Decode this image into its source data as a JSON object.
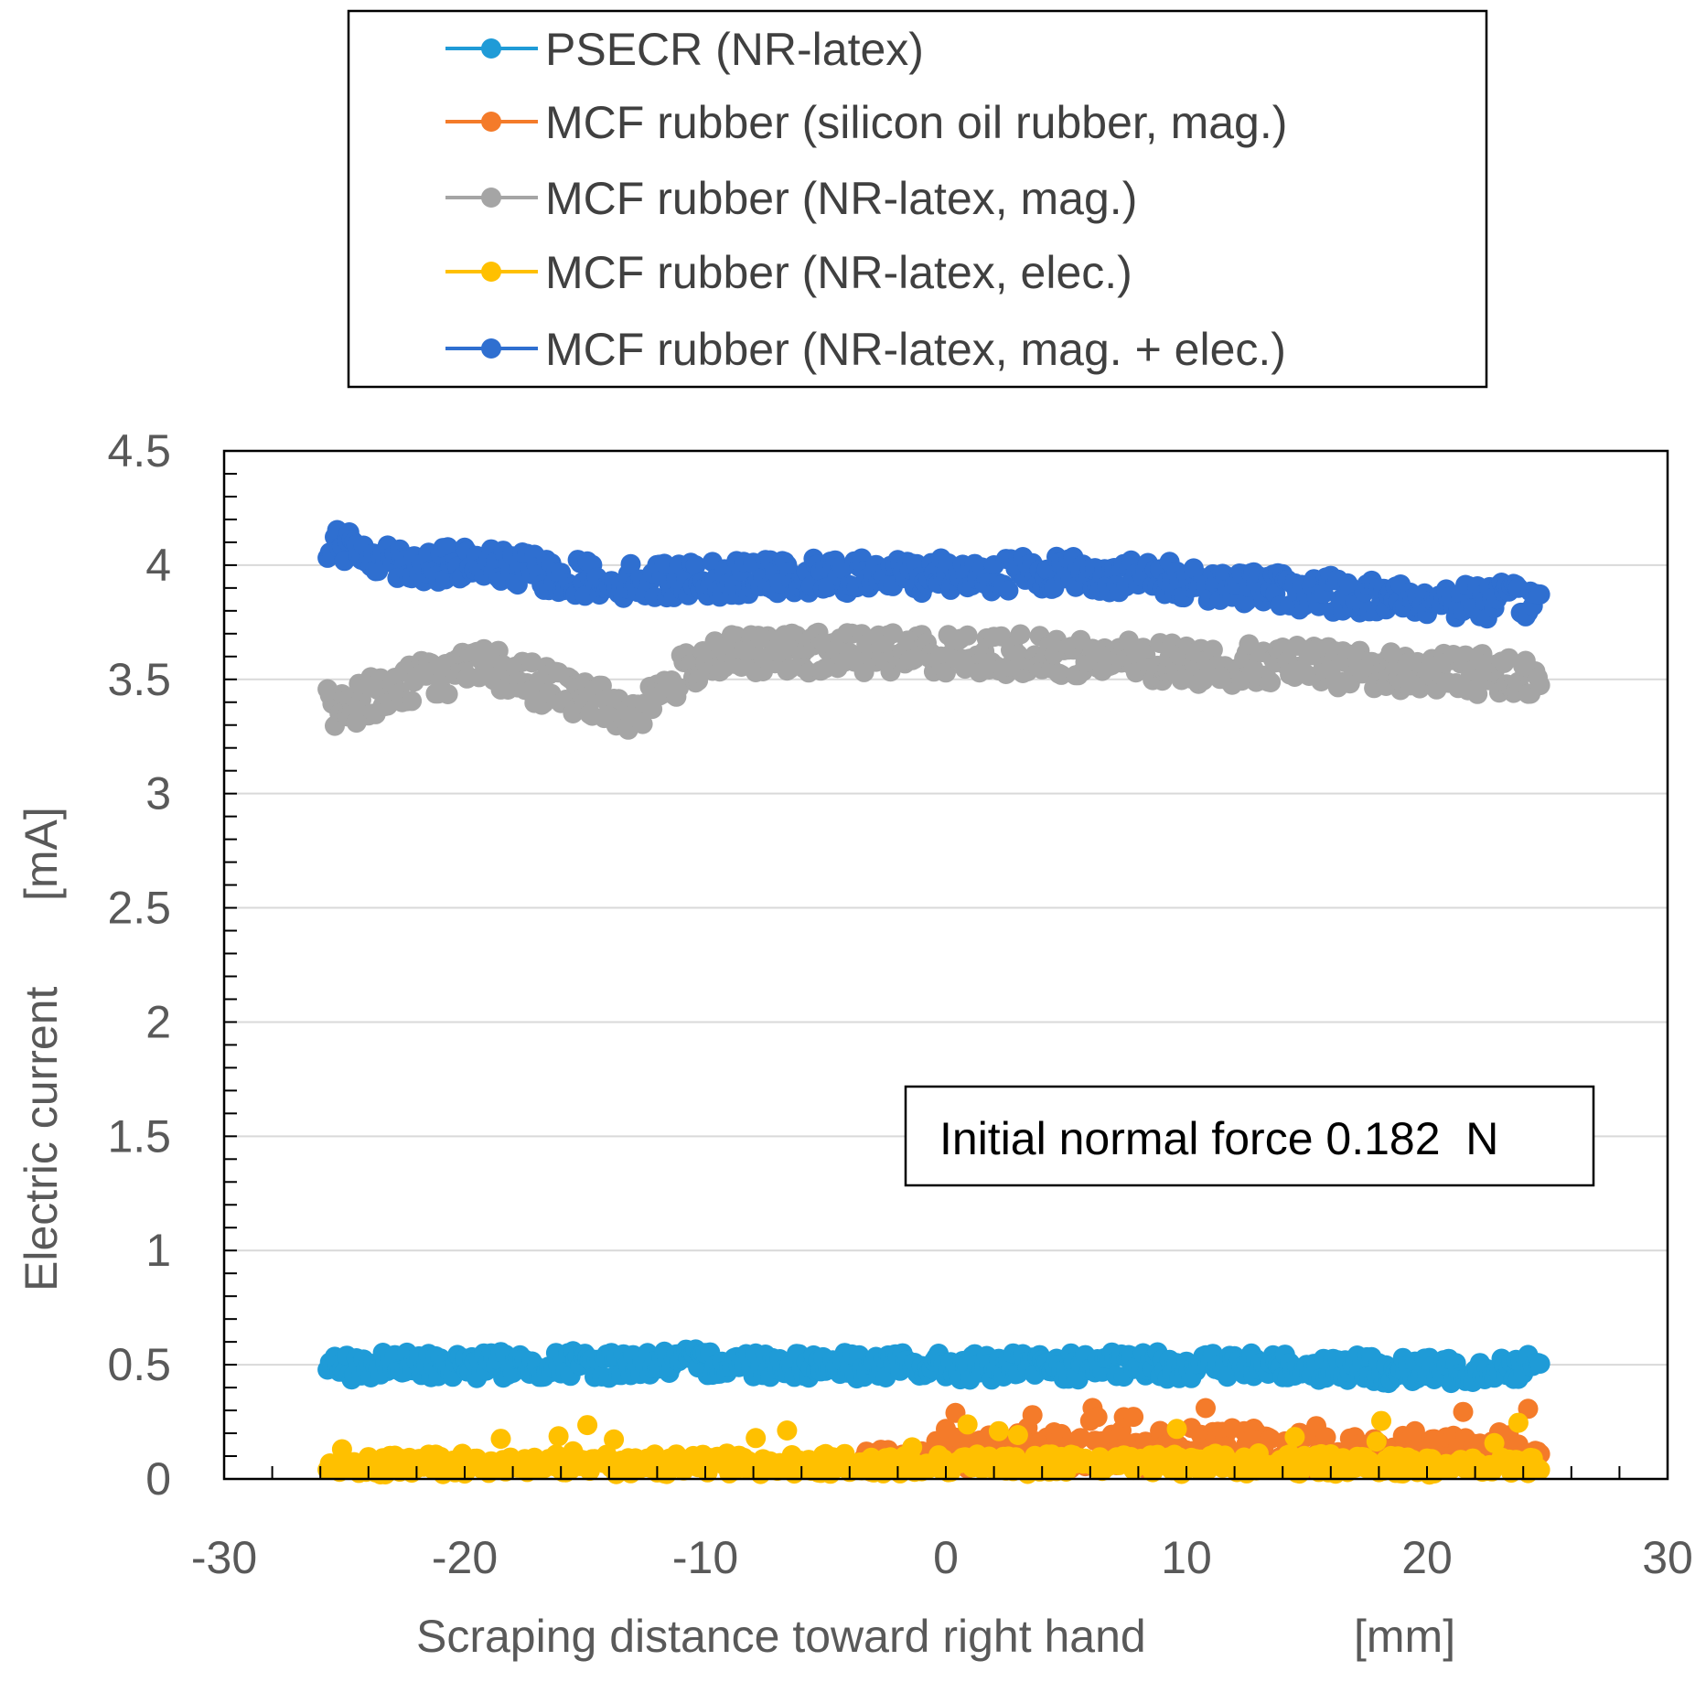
{
  "chart_data": {
    "type": "scatter",
    "title": "",
    "xlabel": "Scraping distance toward right hand",
    "xlabel_unit": "[mm]",
    "ylabel": "Electric current",
    "ylabel_unit": "[mA]",
    "xlim": [
      -30,
      30
    ],
    "ylim": [
      0,
      4.5
    ],
    "x_ticks": [
      "-30",
      "-20",
      "-10",
      "0",
      "10",
      "20",
      "30"
    ],
    "y_ticks": [
      "0",
      "0.5",
      "1",
      "1.5",
      "2",
      "2.5",
      "3",
      "3.5",
      "4",
      "4.5"
    ],
    "grid": "horizontal",
    "legend_position": "top (above plot)",
    "annotation": "Initial normal force 0.182  N",
    "series": [
      {
        "name": "PSECR (NR-latex)",
        "color": "#1f9bd7",
        "x": [
          -25,
          -20,
          -15,
          -10,
          -5,
          0,
          5,
          10,
          15,
          20,
          25
        ],
        "values": [
          0.49,
          0.5,
          0.5,
          0.51,
          0.5,
          0.49,
          0.49,
          0.5,
          0.49,
          0.47,
          0.5
        ]
      },
      {
        "name": "MCF rubber (silicon oil rubber, mag.)",
        "color": "#f47b2a",
        "x": [
          -25,
          -20,
          -15,
          -10,
          -5,
          0,
          5,
          10,
          15,
          20,
          25
        ],
        "values": [
          0.02,
          0.02,
          0.02,
          0.03,
          0.06,
          0.12,
          0.13,
          0.14,
          0.14,
          0.13,
          0.12
        ]
      },
      {
        "name": "MCF rubber (NR-latex, mag.)",
        "color": "#a5a5a5",
        "x": [
          -25,
          -22,
          -19,
          -16,
          -13,
          -10,
          -5,
          0,
          5,
          10,
          15,
          20,
          25
        ],
        "values": [
          3.38,
          3.5,
          3.55,
          3.45,
          3.35,
          3.6,
          3.62,
          3.62,
          3.6,
          3.57,
          3.56,
          3.53,
          3.52
        ]
      },
      {
        "name": "MCF rubber (NR-latex, elec.)",
        "color": "#ffc000",
        "x": [
          -25,
          -20,
          -15,
          -10,
          -5,
          0,
          5,
          10,
          15,
          20,
          25
        ],
        "values": [
          0.06,
          0.07,
          0.07,
          0.07,
          0.07,
          0.07,
          0.07,
          0.07,
          0.07,
          0.06,
          0.06
        ]
      },
      {
        "name": "MCF rubber (NR-latex, mag. + elec.)",
        "color": "#2f6fd0",
        "x": [
          -25,
          -22,
          -19,
          -16,
          -13,
          -10,
          -5,
          0,
          5,
          10,
          15,
          20,
          25
        ],
        "values": [
          4.08,
          4.0,
          4.0,
          3.95,
          3.93,
          3.94,
          3.95,
          3.96,
          3.97,
          3.93,
          3.88,
          3.85,
          3.84
        ]
      }
    ]
  }
}
